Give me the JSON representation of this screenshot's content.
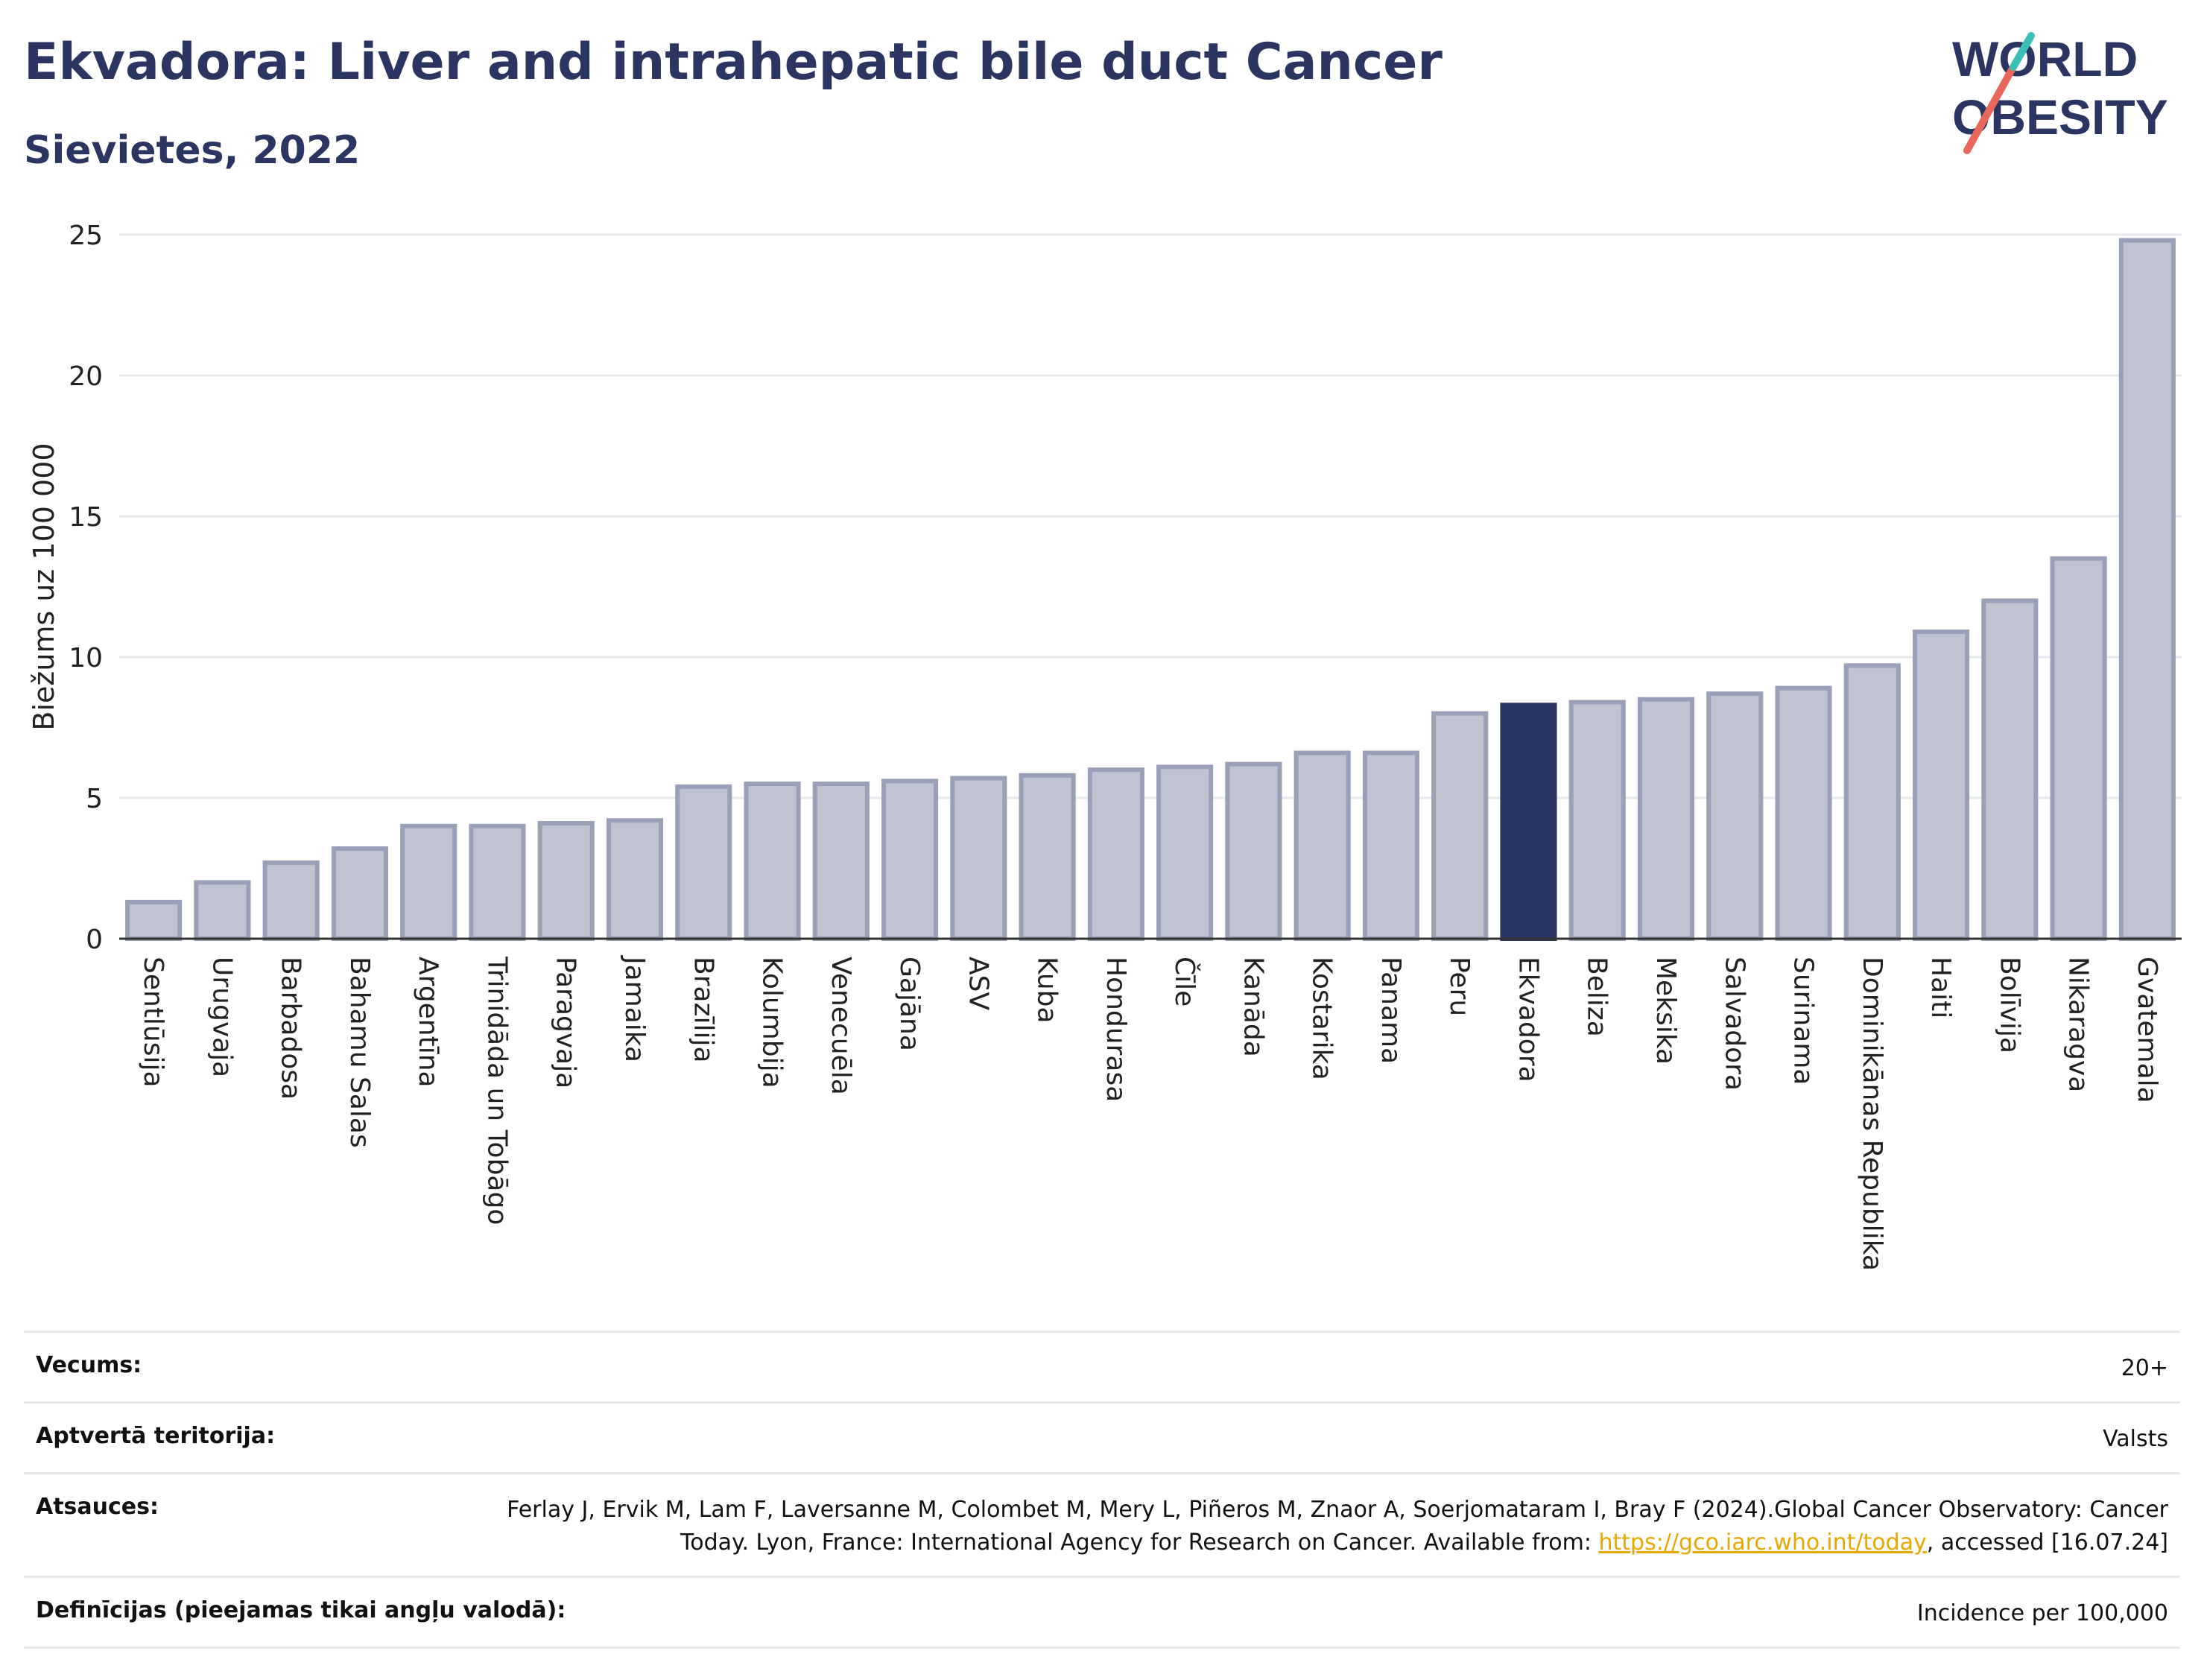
{
  "header": {
    "title": "Ekvadora: Liver and intrahepatic bile duct Cancer",
    "subtitle": "Sievietes, 2022"
  },
  "logo": {
    "line1": "WORLD",
    "line2": "OBESITY",
    "colors": [
      "#2b3561",
      "#e8675a",
      "#3bbfb5"
    ]
  },
  "chart_data": {
    "type": "bar",
    "ylabel": "Biežums uz 100 000",
    "xlabel": "",
    "ylim": [
      0,
      25
    ],
    "yticks": [
      0,
      5,
      10,
      15,
      20,
      25
    ],
    "grid": true,
    "highlight": "Ekvadora",
    "colors": {
      "bar": "#c0c4d0",
      "bar_edge": "#9aa0b7",
      "highlight": "#2b3561"
    },
    "categories": [
      "Sentlūsija",
      "Urugvaja",
      "Barbadosa",
      "Bahamu Salas",
      "Argentīna",
      "Trinidāda un Tobāgo",
      "Paragvaja",
      "Jamaika",
      "Brazīlija",
      "Kolumbija",
      "Venecuēla",
      "Gajāna",
      "ASV",
      "Kuba",
      "Hondurasa",
      "Čīle",
      "Kanāda",
      "Kostarika",
      "Panama",
      "Peru",
      "Ekvadora",
      "Beliza",
      "Meksika",
      "Salvadora",
      "Surinama",
      "Dominikānas Republika",
      "Haiti",
      "Bolīvija",
      "Nikaragva",
      "Gvatemala"
    ],
    "values": [
      1.3,
      2.0,
      2.7,
      3.2,
      4.0,
      4.0,
      4.1,
      4.2,
      5.4,
      5.5,
      5.5,
      5.6,
      5.7,
      5.8,
      6.0,
      6.1,
      6.2,
      6.6,
      6.6,
      8.0,
      8.3,
      8.4,
      8.5,
      8.7,
      8.9,
      9.7,
      10.9,
      12.0,
      13.5,
      24.8
    ]
  },
  "footer": {
    "age_label": "Vecums:",
    "age_value": "20+",
    "territory_label": "Aptvertā teritorija:",
    "territory_value": "Valsts",
    "refs_label": "Atsauces:",
    "refs_text": "Ferlay J, Ervik M, Lam F, Laversanne M, Colombet M, Mery L, Piñeros M, Znaor A, Soerjomataram I, Bray F (2024).Global Cancer Observatory: Cancer Today. Lyon, France: International Agency for Research on Cancer. Available from: ",
    "refs_link": "https://gco.iarc.who.int/today",
    "refs_tail": ", accessed [16.07.24]",
    "defs_label": "Definīcijas (pieejamas tikai angļu valodā):",
    "defs_value": "Incidence per 100,000"
  }
}
